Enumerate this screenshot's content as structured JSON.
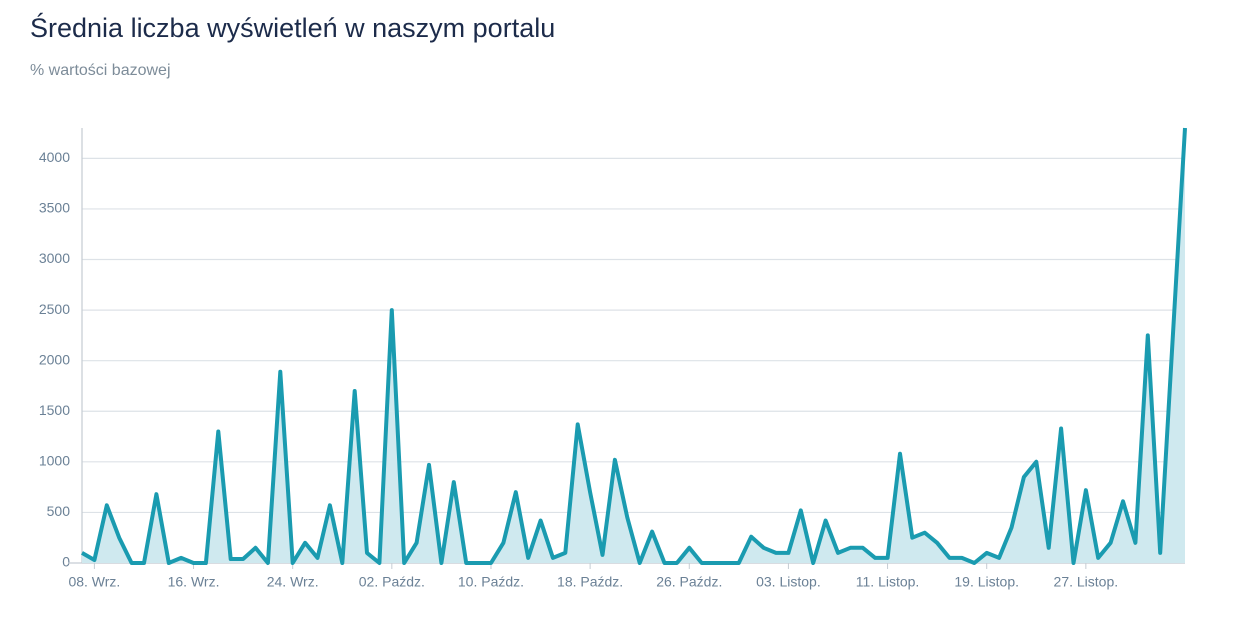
{
  "chart_data": {
    "type": "area",
    "title": "Średnia liczba wyświetleń w naszym portalu",
    "subtitle": "% wartości bazowej",
    "categories": [
      null,
      "08. Wrz.",
      null,
      null,
      null,
      null,
      null,
      null,
      null,
      "16. Wrz.",
      null,
      null,
      null,
      null,
      null,
      null,
      null,
      "24. Wrz.",
      null,
      null,
      null,
      null,
      null,
      null,
      null,
      "02. Paźdz.",
      null,
      null,
      null,
      null,
      null,
      null,
      null,
      "10. Paźdz.",
      null,
      null,
      null,
      null,
      null,
      null,
      null,
      "18. Paźdz.",
      null,
      null,
      null,
      null,
      null,
      null,
      null,
      "26. Paźdz.",
      null,
      null,
      null,
      null,
      null,
      null,
      null,
      "03. Listop.",
      null,
      null,
      null,
      null,
      null,
      null,
      null,
      "11. Listop.",
      null,
      null,
      null,
      null,
      null,
      null,
      null,
      "19. Listop.",
      null,
      null,
      null,
      null,
      null,
      null,
      null,
      "27. Listop.",
      null,
      null,
      null,
      null,
      null,
      null,
      null,
      null
    ],
    "values": [
      100,
      30,
      570,
      250,
      0,
      0,
      680,
      0,
      50,
      0,
      0,
      1300,
      40,
      40,
      150,
      0,
      1890,
      0,
      200,
      50,
      570,
      0,
      1700,
      100,
      0,
      2500,
      0,
      200,
      970,
      0,
      800,
      0,
      0,
      0,
      200,
      700,
      50,
      420,
      50,
      100,
      1370,
      700,
      80,
      1020,
      450,
      0,
      310,
      0,
      0,
      150,
      0,
      0,
      0,
      0,
      260,
      150,
      100,
      100,
      520,
      0,
      420,
      100,
      150,
      150,
      50,
      50,
      1080,
      250,
      300,
      200,
      50,
      50,
      0,
      100,
      50,
      350,
      850,
      1000,
      150,
      1330,
      0,
      720,
      50,
      200,
      610,
      200,
      2250,
      100,
      2200,
      4300
    ],
    "color": "#1a9bb0",
    "fill_color": "#cfe9ef",
    "ylim": [
      0,
      4300
    ],
    "yticks": [
      0,
      500,
      1000,
      1500,
      2000,
      2500,
      3000,
      3500,
      4000
    ],
    "grid": true
  }
}
